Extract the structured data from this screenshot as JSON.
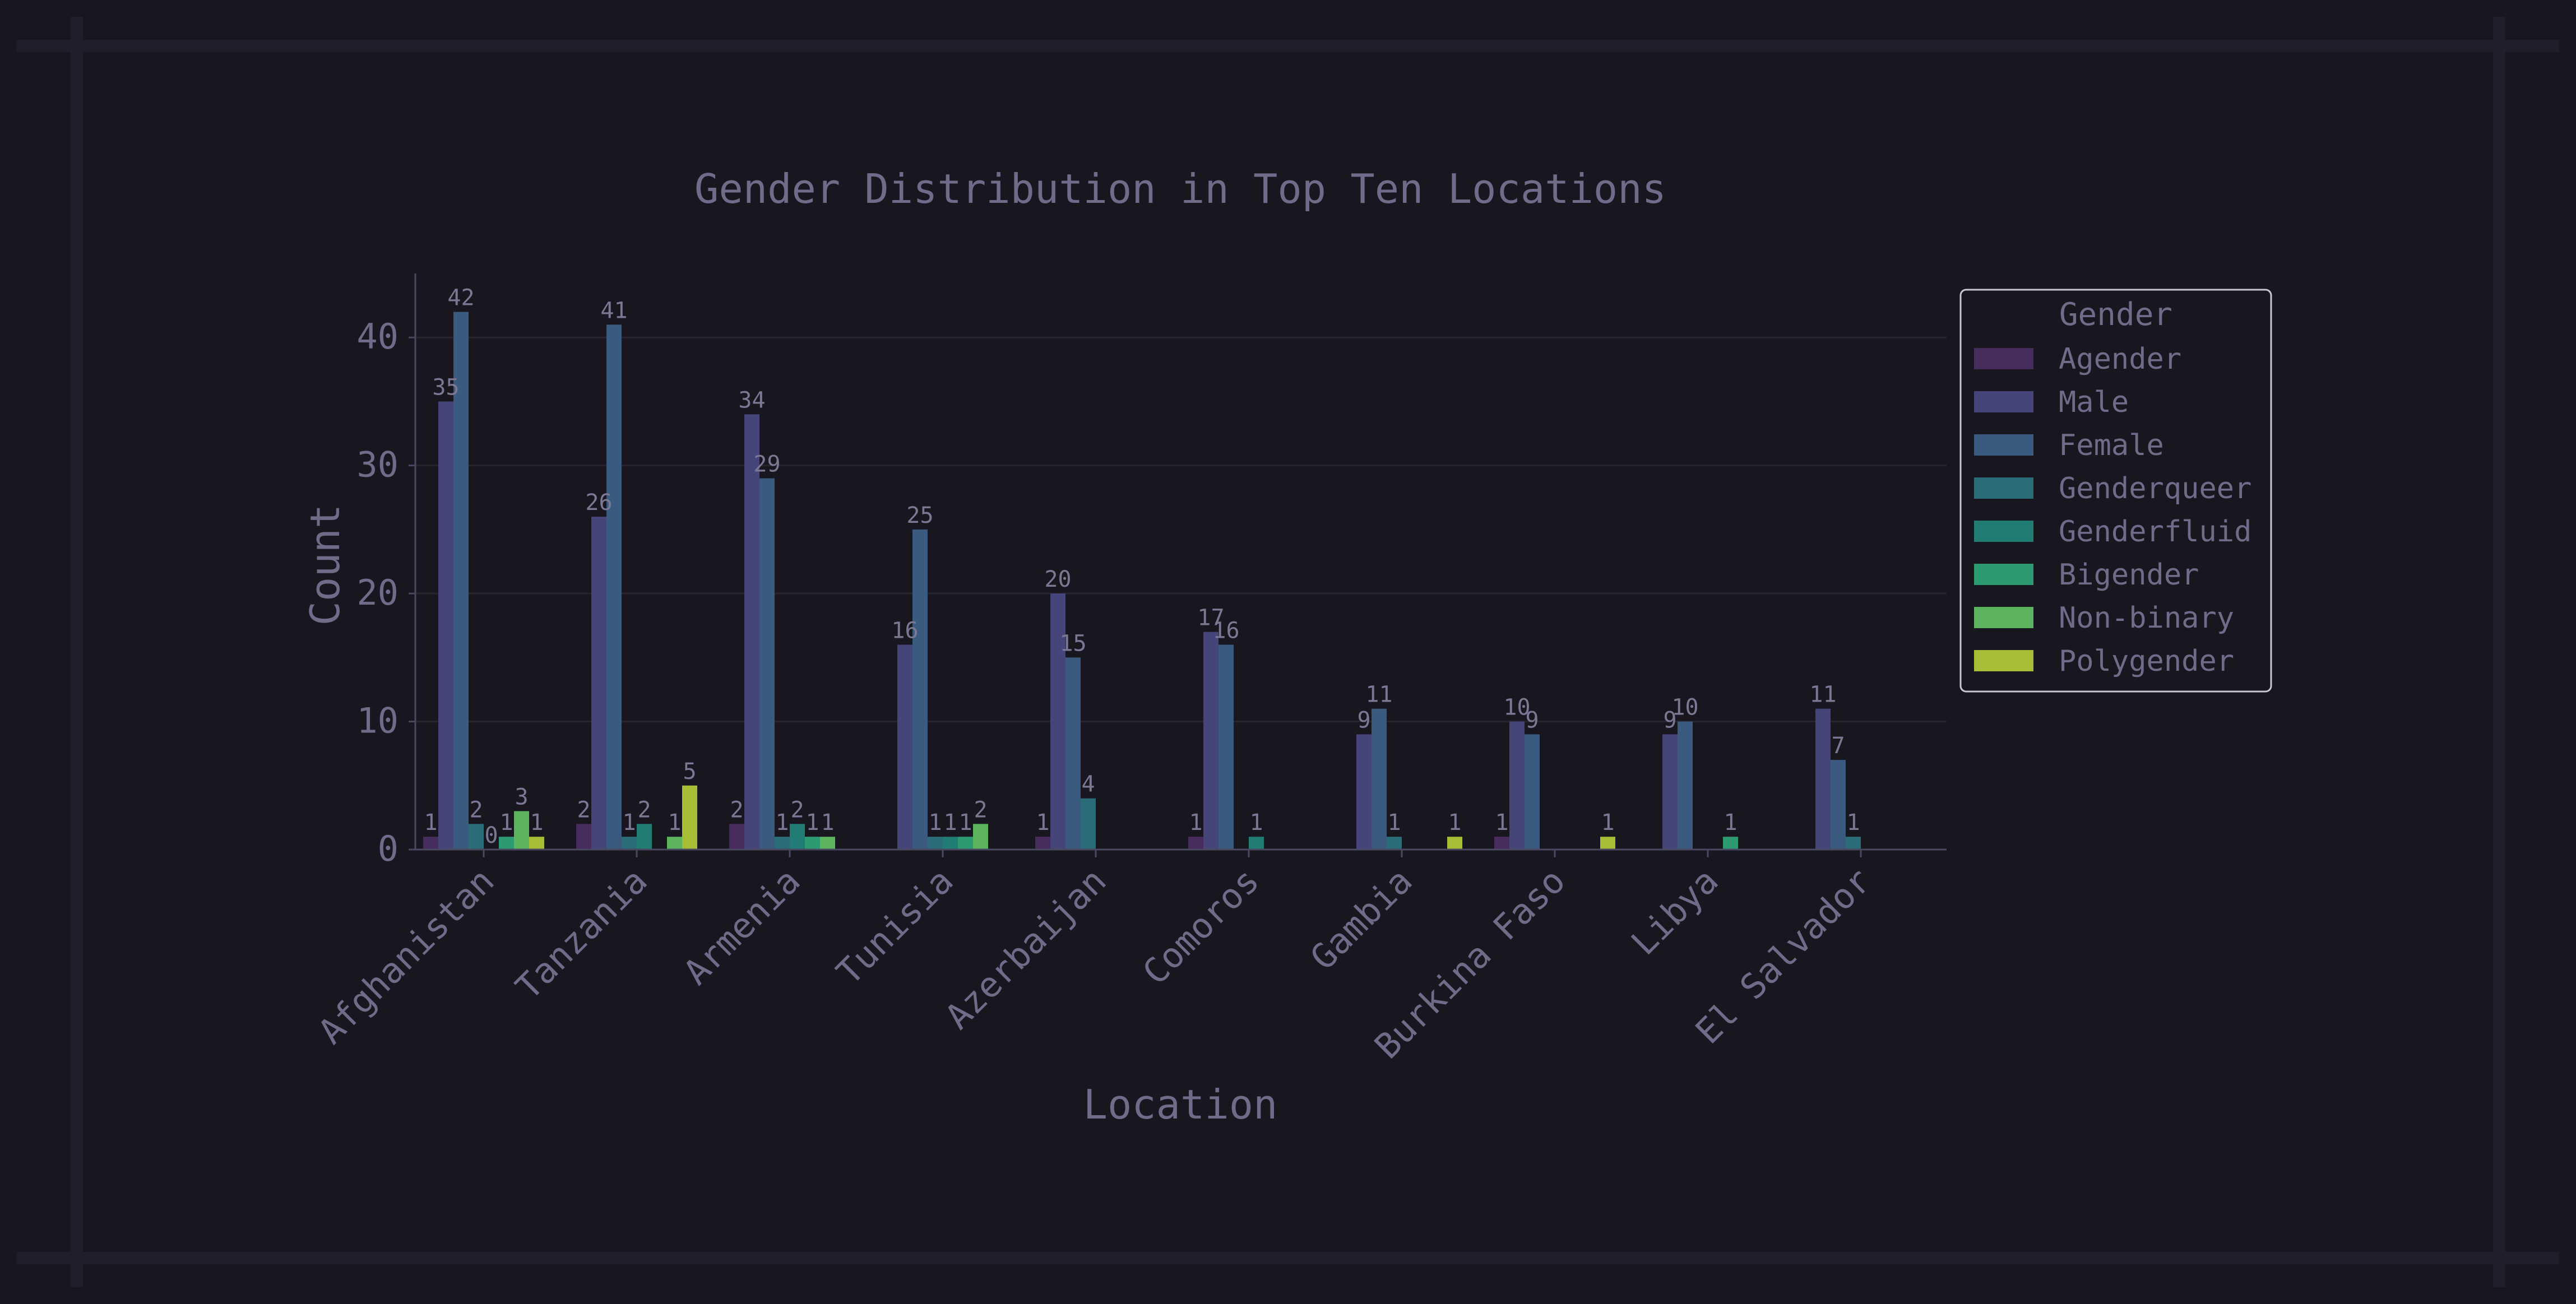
{
  "chart_data": {
    "type": "bar",
    "title": "Gender Distribution in Top Ten Locations",
    "xlabel": "Location",
    "ylabel": "Count",
    "ylim": [
      0,
      45
    ],
    "yticks": [
      0,
      10,
      20,
      30,
      40
    ],
    "grid": true,
    "legend_title": "Gender",
    "legend_position": "upper-right, outside plot",
    "categories": [
      "Afghanistan",
      "Tanzania",
      "Armenia",
      "Tunisia",
      "Azerbaijan",
      "Comoros",
      "Gambia",
      "Burkina Faso",
      "Libya",
      "El Salvador"
    ],
    "series": [
      {
        "name": "Agender",
        "color": "#472d5e",
        "values": [
          1,
          2,
          2,
          null,
          1,
          1,
          null,
          1,
          null,
          null
        ]
      },
      {
        "name": "Male",
        "color": "#45457a",
        "values": [
          35,
          26,
          34,
          16,
          20,
          17,
          9,
          10,
          9,
          11
        ]
      },
      {
        "name": "Female",
        "color": "#3a5a80",
        "values": [
          42,
          41,
          29,
          25,
          15,
          16,
          11,
          9,
          10,
          7
        ]
      },
      {
        "name": "Genderqueer",
        "color": "#2c6b78",
        "values": [
          2,
          1,
          1,
          1,
          4,
          null,
          1,
          null,
          null,
          1
        ]
      },
      {
        "name": "Genderfluid",
        "color": "#217d73",
        "values": [
          0,
          2,
          2,
          1,
          null,
          1,
          null,
          null,
          null,
          null
        ]
      },
      {
        "name": "Bigender",
        "color": "#2e9a72",
        "values": [
          1,
          null,
          1,
          1,
          null,
          null,
          null,
          null,
          1,
          null
        ]
      },
      {
        "name": "Non-binary",
        "color": "#5cb45f",
        "values": [
          3,
          1,
          1,
          2,
          null,
          null,
          null,
          null,
          null,
          null
        ]
      },
      {
        "name": "Polygender",
        "color": "#a6bd35",
        "values": [
          1,
          5,
          null,
          null,
          null,
          null,
          1,
          1,
          null,
          null
        ]
      }
    ]
  }
}
